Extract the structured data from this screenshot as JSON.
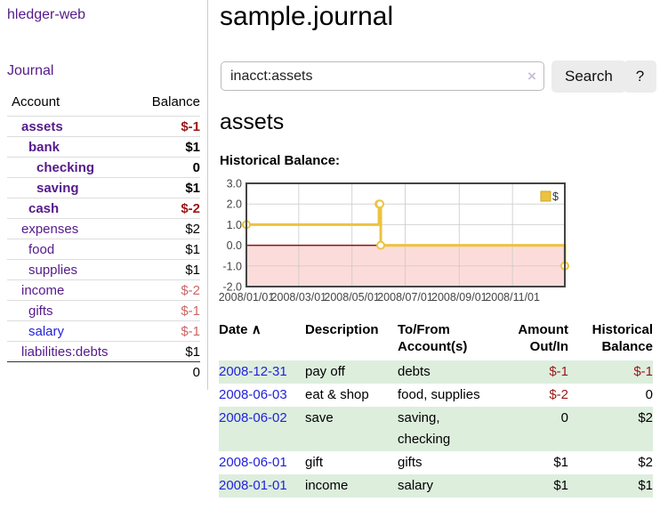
{
  "app": {
    "brand": "hledger-web"
  },
  "colors": {
    "purple_link": "#551a8b",
    "blue_link": "#2222dd",
    "negative_strong": "#9d1717",
    "negative_light": "#cc6666",
    "row_green": "#ddeedd",
    "chart_line": "#edc240"
  },
  "sidebar": {
    "journal_link": "Journal",
    "accounts": {
      "col_account": "Account",
      "col_balance": "Balance",
      "rows": [
        {
          "name": "assets",
          "balance": "$-1"
        },
        {
          "name": "bank",
          "balance": "$1"
        },
        {
          "name": "checking",
          "balance": "0"
        },
        {
          "name": "saving",
          "balance": "$1"
        },
        {
          "name": "cash",
          "balance": "$-2"
        },
        {
          "name": "expenses",
          "balance": "$2"
        },
        {
          "name": "food",
          "balance": "$1"
        },
        {
          "name": "supplies",
          "balance": "$1"
        },
        {
          "name": "income",
          "balance": "$-2"
        },
        {
          "name": "gifts",
          "balance": "$-1"
        },
        {
          "name": "salary",
          "balance": "$-1"
        },
        {
          "name": "liabilities:debts",
          "balance": "$1"
        }
      ],
      "total": "0"
    }
  },
  "main": {
    "title": "sample.journal",
    "search": {
      "value": "inacct:assets",
      "clear": "×",
      "button": "Search",
      "help": "?"
    },
    "heading": "assets",
    "chart_label": "Historical Balance:",
    "register": {
      "h_date": "Date",
      "sort_indicator": "∧",
      "h_desc": "Description",
      "h_tofrom1": "To/From",
      "h_tofrom2": "Account(s)",
      "h_amount1": "Amount",
      "h_amount2": "Out/In",
      "h_hist1": "Historical",
      "h_hist2": "Balance",
      "rows": [
        {
          "date": "2008-12-31",
          "description": "pay off",
          "tofrom": "debts",
          "amount": "$-1",
          "balance": "$-1"
        },
        {
          "date": "2008-06-03",
          "description": "eat & shop",
          "tofrom": "food, supplies",
          "amount": "$-2",
          "balance": "0"
        },
        {
          "date": "2008-06-02",
          "description": "save",
          "tofrom": "saving, checking",
          "amount": "0",
          "balance": "$2"
        },
        {
          "date": "2008-06-01",
          "description": "gift",
          "tofrom": "gifts",
          "amount": "$1",
          "balance": "$2"
        },
        {
          "date": "2008-01-01",
          "description": "income",
          "tofrom": "salary",
          "amount": "$1",
          "balance": "$1"
        }
      ]
    }
  },
  "chart_data": {
    "type": "line",
    "title": "Historical Balance:",
    "step": true,
    "grid": true,
    "legend_position": "top-right",
    "x_axis": {
      "labels": [
        "2008/01/01",
        "2008/03/01",
        "2008/05/01",
        "2008/07/01",
        "2008/09/01",
        "2008/11/01"
      ],
      "tick_days": [
        0,
        60,
        121,
        182,
        244,
        305
      ],
      "domain_days": [
        0,
        365
      ]
    },
    "y_axis": {
      "ticks": [
        3.0,
        2.0,
        1.0,
        0.0,
        -1.0,
        -2.0
      ],
      "range": [
        -2,
        3
      ]
    },
    "series": [
      {
        "name": "$",
        "color": "#edc240",
        "points": [
          {
            "date": "2008-01-01",
            "day": 0,
            "value": 1
          },
          {
            "date": "2008-06-01",
            "day": 152,
            "value": 2
          },
          {
            "date": "2008-06-02",
            "day": 153,
            "value": 2
          },
          {
            "date": "2008-06-03",
            "day": 154,
            "value": 0
          },
          {
            "date": "2008-12-31",
            "day": 365,
            "value": -1
          }
        ]
      }
    ],
    "zero_line_color": "#8b1515",
    "negative_region_color": "#fcdcda",
    "gridline_color": "#c9c9c9",
    "border_color": "#444444"
  }
}
